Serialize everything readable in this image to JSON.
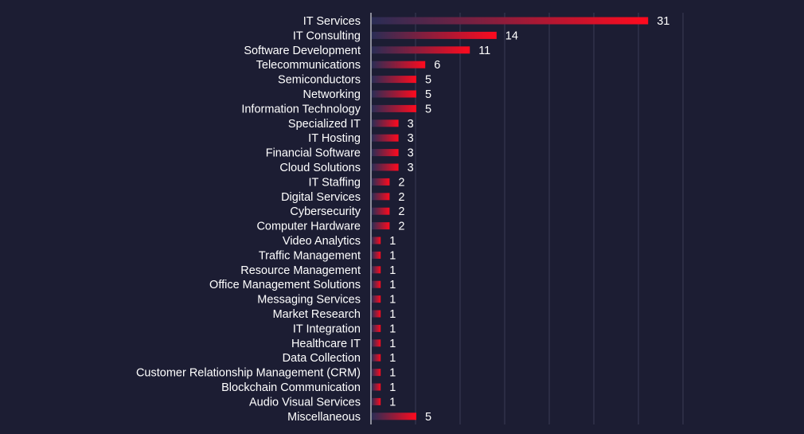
{
  "chart_data": {
    "type": "bar",
    "orientation": "horizontal",
    "title": "",
    "xlabel": "",
    "ylabel": "",
    "grid": true,
    "xlim": [
      0,
      35
    ],
    "categories": [
      "IT Services",
      "IT Consulting",
      "Software Development",
      "Telecommunications",
      "Semiconductors",
      "Networking",
      "Information Technology",
      "Specialized IT",
      "IT Hosting",
      "Financial Software",
      "Cloud Solutions",
      "IT Staffing",
      "Digital Services",
      "Cybersecurity",
      "Computer Hardware",
      "Video Analytics",
      "Traffic Management",
      "Resource Management",
      "Office Management Solutions",
      "Messaging Services",
      "Market Research",
      "IT Integration",
      "Healthcare IT",
      "Data Collection",
      "Customer Relationship Management (CRM)",
      "Blockchain Communication",
      "Audio Visual Services",
      "Miscellaneous"
    ],
    "values": [
      31,
      14,
      11,
      6,
      5,
      5,
      5,
      3,
      3,
      3,
      3,
      2,
      2,
      2,
      2,
      1,
      1,
      1,
      1,
      1,
      1,
      1,
      1,
      1,
      1,
      1,
      1,
      5
    ],
    "colors": {
      "background": "#1c1d33",
      "bar_start": "#2a2d55",
      "bar_end": "#ff0a1e",
      "text": "#ffffff",
      "grid": "#3a3b55",
      "axis": "#d8d8e0"
    }
  }
}
